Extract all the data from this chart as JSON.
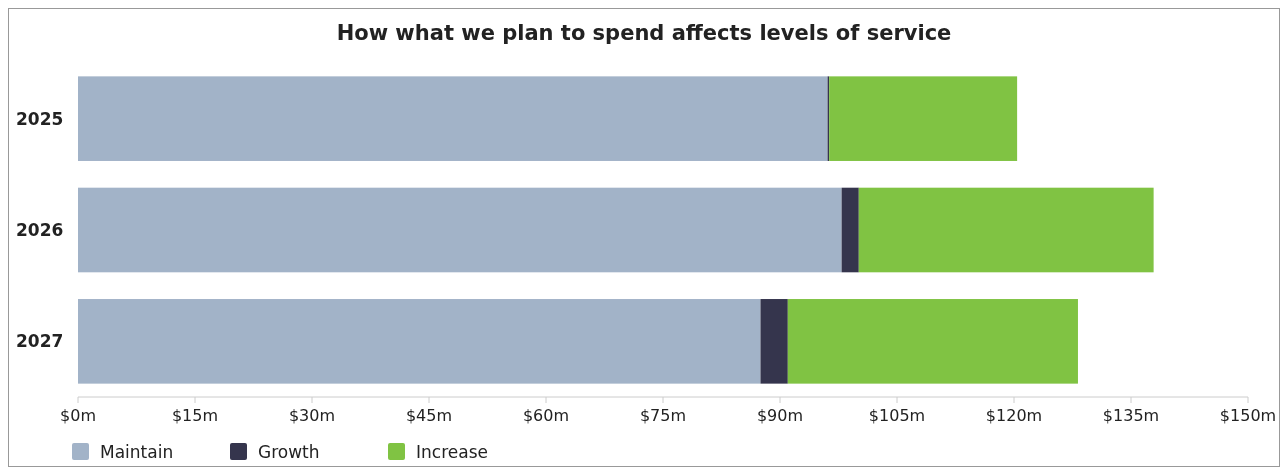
{
  "chart_data": {
    "type": "bar",
    "orientation": "horizontal",
    "stacked": true,
    "title": "How what we plan to spend affects levels of service",
    "categories": [
      "2025",
      "2026",
      "2027"
    ],
    "series": [
      {
        "name": "Maintain",
        "color": "#a2b3c8",
        "values": [
          96.1,
          97.9,
          87.5
        ]
      },
      {
        "name": "Growth",
        "color": "#35354d",
        "values": [
          0.2,
          2.2,
          3.5
        ]
      },
      {
        "name": "Increase",
        "color": "#80c343",
        "values": [
          24.1,
          37.8,
          37.2
        ]
      }
    ],
    "xlim": [
      0,
      150
    ],
    "xticks": [
      {
        "value": 0,
        "label": "$0m"
      },
      {
        "value": 15,
        "label": "$15m"
      },
      {
        "value": 30,
        "label": "$30m"
      },
      {
        "value": 45,
        "label": "$45m"
      },
      {
        "value": 60,
        "label": "$60m"
      },
      {
        "value": 75,
        "label": "$75m"
      },
      {
        "value": 90,
        "label": "$90m"
      },
      {
        "value": 105,
        "label": "$105m"
      },
      {
        "value": 120,
        "label": "$120m"
      },
      {
        "value": 135,
        "label": "$135m"
      },
      {
        "value": 150,
        "label": "$150m"
      }
    ],
    "grid": false,
    "legend": "bottom"
  }
}
